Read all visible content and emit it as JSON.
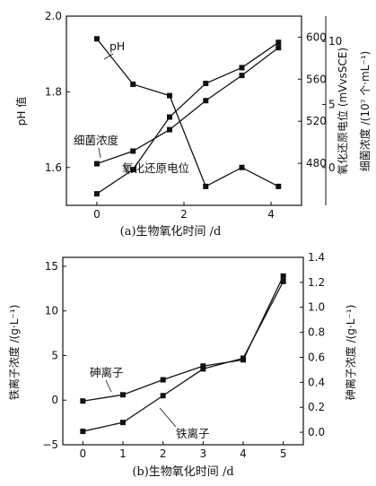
{
  "chart_data": [
    {
      "id": "a",
      "type": "line",
      "caption": "(a)生物氧化时间 /d",
      "xlim": [
        -0.7,
        4.7
      ],
      "x_ticks": [
        0,
        2,
        4
      ],
      "x_tick_labels": [
        "0",
        "2",
        "4"
      ],
      "grid": false,
      "axes": {
        "left": {
          "label": "pH 值",
          "lim": [
            1.5,
            2.0
          ],
          "ticks": [
            1.6,
            1.8,
            2.0
          ],
          "tick_labels": [
            "1.6",
            "1.8",
            "2.0"
          ]
        },
        "right1": {
          "label": "氧化还原电位 (mVvsSCE)",
          "lim": [
            440,
            620
          ],
          "ticks": [
            480,
            520,
            560,
            600
          ],
          "tick_labels": [
            "480",
            "520",
            "560",
            "600"
          ]
        },
        "right2": {
          "label": "细菌浓度 /(10⁷ 个·mL⁻¹)",
          "lim": [
            -3,
            12
          ],
          "ticks": [
            0,
            5,
            10
          ],
          "tick_labels": [
            "0",
            "5",
            "10"
          ]
        }
      },
      "series": [
        {
          "name": "pH",
          "axis": "left",
          "x": [
            0,
            0.83,
            1.67,
            2.5,
            3.33,
            4.17
          ],
          "values": [
            1.94,
            1.82,
            1.79,
            1.55,
            1.6,
            1.55
          ]
        },
        {
          "name": "氧化还原电位",
          "axis": "right1",
          "x": [
            0,
            0.83,
            1.67,
            2.5,
            3.33,
            4.17
          ],
          "values": [
            451,
            474,
            524,
            556,
            571,
            595
          ]
        },
        {
          "name": "细菌浓度",
          "axis": "right2",
          "x": [
            0,
            0.83,
            1.67,
            2.5,
            3.33,
            4.17
          ],
          "values": [
            0.3,
            1.3,
            3.0,
            5.3,
            7.3,
            9.5
          ]
        }
      ],
      "annotations": [
        "pH",
        "细菌浓度",
        "氧化还原电位"
      ]
    },
    {
      "id": "b",
      "type": "line",
      "caption": "(b)生物氧化时间 /d",
      "xlim": [
        -0.5,
        5.5
      ],
      "x_ticks": [
        0,
        1,
        2,
        3,
        4,
        5
      ],
      "x_tick_labels": [
        "0",
        "1",
        "2",
        "3",
        "4",
        "5"
      ],
      "grid": false,
      "axes": {
        "left": {
          "label": "铁离子浓度 /(g·L⁻¹)",
          "lim": [
            -5,
            16
          ],
          "ticks": [
            -5,
            0,
            5,
            10,
            15
          ],
          "tick_labels": [
            "−5",
            "0",
            "5",
            "10",
            "15"
          ]
        },
        "right": {
          "label": "砷离子浓度 /(g·L⁻¹)",
          "lim": [
            -0.1,
            1.4
          ],
          "ticks": [
            0.0,
            0.2,
            0.4,
            0.6,
            0.8,
            1.0,
            1.2,
            1.4
          ],
          "tick_labels": [
            "0.0",
            "0.2",
            "0.4",
            "0.6",
            "0.8",
            "1.0",
            "1.2",
            "1.4"
          ]
        }
      },
      "series": [
        {
          "name": "砷离子",
          "axis": "right",
          "x": [
            0,
            1,
            2,
            3,
            4,
            5
          ],
          "values": [
            0.25,
            0.3,
            0.42,
            0.53,
            0.58,
            1.25
          ]
        },
        {
          "name": "铁离子",
          "axis": "left",
          "x": [
            0,
            1,
            2,
            3,
            4,
            5
          ],
          "values": [
            -3.5,
            -2.5,
            0.5,
            3.5,
            4.7,
            13.3
          ]
        }
      ],
      "annotations": [
        "砷离子",
        "铁离子"
      ]
    }
  ]
}
